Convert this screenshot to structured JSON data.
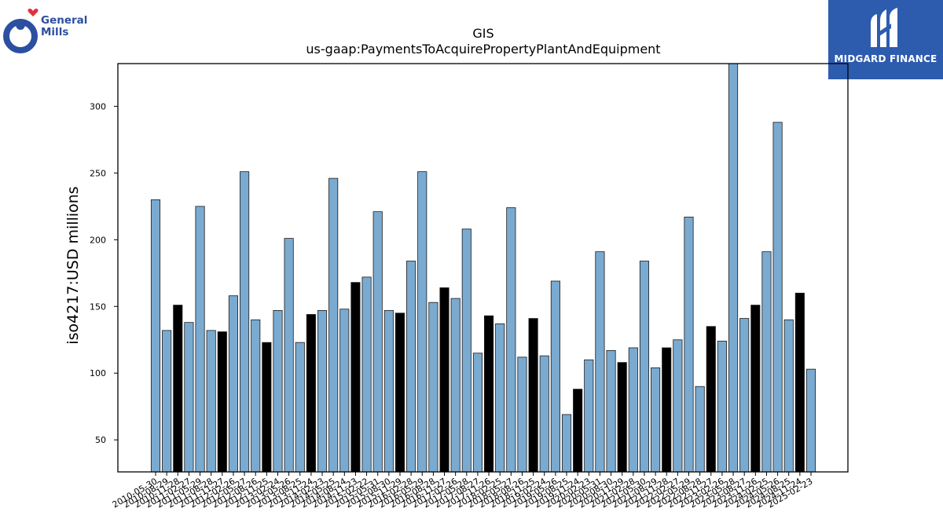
{
  "logos": {
    "general_mills": {
      "line1": "General",
      "line2": "Mills"
    },
    "midgard": {
      "text": "MIDGARD FINANCE"
    }
  },
  "colors": {
    "bar_light": "#7aaad0",
    "bar_dark": "#000000",
    "midgard_bg": "#2d5caf",
    "gm_blue": "#2c4fa0",
    "gm_heart": "#e0323c"
  },
  "chart_data": {
    "type": "bar",
    "title": "GIS",
    "subtitle": "us-gaap:PaymentsToAcquirePropertyPlantAndEquipment",
    "xlabel": "",
    "ylabel": "iso4217:USD  millions",
    "ylim": [
      26,
      332
    ],
    "yticks": [
      50,
      100,
      150,
      200,
      250,
      300
    ],
    "grid": false,
    "categories": [
      "2010-05-30",
      "2010-08-29",
      "2010-11-28",
      "2011-02-27",
      "2011-05-29",
      "2011-08-28",
      "2011-11-27",
      "2012-02-26",
      "2012-05-27",
      "2012-08-26",
      "2012-11-25",
      "2013-02-24",
      "2013-05-26",
      "2013-08-25",
      "2013-11-24",
      "2014-02-23",
      "2014-05-25",
      "2014-08-24",
      "2014-11-23",
      "2015-02-22",
      "2015-05-31",
      "2015-08-30",
      "2015-11-29",
      "2016-02-28",
      "2016-05-29",
      "2016-08-28",
      "2016-11-27",
      "2017-02-26",
      "2017-05-28",
      "2017-08-27",
      "2017-11-26",
      "2018-02-25",
      "2018-05-27",
      "2018-08-26",
      "2018-11-25",
      "2019-02-24",
      "2019-05-26",
      "2019-08-25",
      "2019-11-24",
      "2020-02-23",
      "2020-05-31",
      "2020-08-30",
      "2020-11-29",
      "2021-02-28",
      "2021-05-30",
      "2021-08-29",
      "2021-11-28",
      "2022-02-27",
      "2022-05-29",
      "2022-08-28",
      "2022-11-27",
      "2023-02-26",
      "2023-05-28",
      "2023-08-27",
      "2023-11-26",
      "2024-02-25",
      "2024-05-26",
      "2024-08-25",
      "2024-11-24",
      "2025-02-23"
    ],
    "values": [
      230,
      132,
      151,
      138,
      225,
      132,
      131,
      158,
      251,
      140,
      123,
      147,
      201,
      123,
      144,
      147,
      246,
      148,
      168,
      172,
      221,
      147,
      145,
      184,
      251,
      153,
      164,
      156,
      208,
      115,
      143,
      137,
      224,
      112,
      141,
      113,
      169,
      69,
      88,
      110,
      191,
      117,
      108,
      119,
      184,
      104,
      119,
      125,
      217,
      90,
      135,
      124,
      335,
      141,
      151,
      191,
      288,
      140,
      160,
      103
    ],
    "series_style": [
      "light",
      "light",
      "dark",
      "light",
      "light",
      "light",
      "dark",
      "light",
      "light",
      "light",
      "dark",
      "light",
      "light",
      "light",
      "dark",
      "light",
      "light",
      "light",
      "dark",
      "light",
      "light",
      "light",
      "dark",
      "light",
      "light",
      "light",
      "dark",
      "light",
      "light",
      "light",
      "dark",
      "light",
      "light",
      "light",
      "dark",
      "light",
      "light",
      "light",
      "dark",
      "light",
      "light",
      "light",
      "dark",
      "light",
      "light",
      "light",
      "dark",
      "light",
      "light",
      "light",
      "dark",
      "light",
      "light",
      "light",
      "dark",
      "light",
      "light",
      "light",
      "dark",
      "light"
    ]
  }
}
